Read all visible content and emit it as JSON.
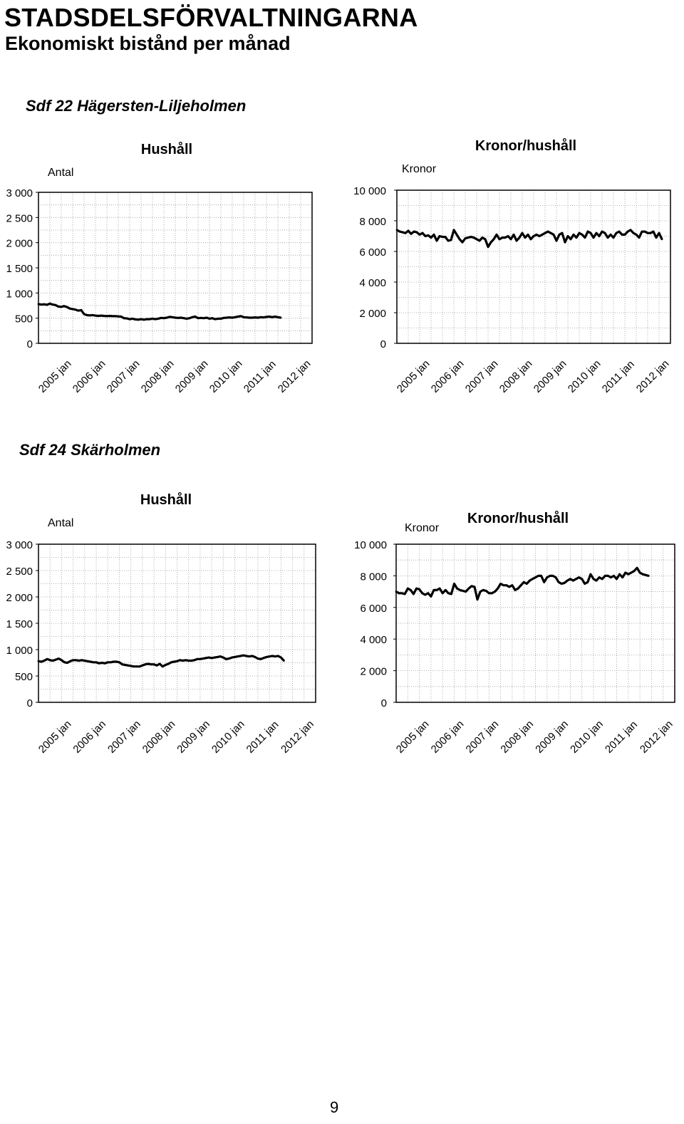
{
  "header": {
    "title": "STADSDELSFÖRVALTNINGARNA",
    "subtitle": "Ekonomiskt bistånd per månad"
  },
  "sections": [
    {
      "name": "Sdf 22 Hägersten-Liljeholmen"
    },
    {
      "name": "Sdf 24 Skärholmen"
    }
  ],
  "page_number": "9",
  "chart_data": [
    {
      "type": "line",
      "section": "Sdf 22 Hägersten-Liljeholmen",
      "title": "Hushåll",
      "ylabel": "Antal",
      "ylim": [
        0,
        3000
      ],
      "yticks": [
        0,
        500,
        1000,
        1500,
        2000,
        2500,
        3000
      ],
      "ytick_labels": [
        "0",
        "500",
        "1 000",
        "1 500",
        "2 000",
        "2 500",
        "3 000"
      ],
      "x_start": "2005-01",
      "xticks": [
        "2005 jan",
        "2006 jan",
        "2007 jan",
        "2008 jan",
        "2009 jan",
        "2010 jan",
        "2011 jan",
        "2012 jan"
      ],
      "grid": true,
      "values": [
        780,
        770,
        775,
        765,
        790,
        770,
        760,
        730,
        725,
        740,
        720,
        690,
        680,
        670,
        650,
        660,
        580,
        560,
        555,
        560,
        550,
        545,
        550,
        545,
        540,
        545,
        540,
        540,
        535,
        530,
        500,
        495,
        480,
        490,
        475,
        470,
        480,
        470,
        480,
        480,
        490,
        480,
        490,
        505,
        500,
        510,
        525,
        520,
        510,
        505,
        510,
        500,
        490,
        500,
        520,
        530,
        500,
        505,
        500,
        510,
        490,
        500,
        480,
        490,
        490,
        505,
        510,
        515,
        510,
        520,
        530,
        540,
        520,
        515,
        510,
        510,
        515,
        510,
        520,
        515,
        525,
        530,
        520,
        530,
        520,
        510
      ]
    },
    {
      "type": "line",
      "section": "Sdf 22 Hägersten-Liljeholmen",
      "title": "Kronor/hushåll",
      "ylabel": "Kronor",
      "ylim": [
        0,
        10000
      ],
      "yticks": [
        0,
        2000,
        4000,
        6000,
        8000,
        10000
      ],
      "ytick_labels": [
        "0",
        "2 000",
        "4 000",
        "6 000",
        "8 000",
        "10 000"
      ],
      "x_start": "2005-01",
      "xticks": [
        "2005 jan",
        "2006 jan",
        "2007 jan",
        "2008 jan",
        "2009 jan",
        "2010 jan",
        "2011 jan",
        "2012 jan"
      ],
      "grid": true,
      "values": [
        7400,
        7300,
        7250,
        7200,
        7350,
        7150,
        7300,
        7250,
        7100,
        7200,
        7000,
        7050,
        6900,
        7100,
        6700,
        7000,
        6950,
        6950,
        6700,
        6750,
        7400,
        7100,
        6800,
        6600,
        6850,
        6900,
        6950,
        6900,
        6800,
        6700,
        6900,
        6800,
        6300,
        6600,
        6800,
        7100,
        6800,
        6900,
        6900,
        7000,
        6800,
        7100,
        6700,
        6900,
        7200,
        6900,
        7100,
        6800,
        7000,
        7100,
        7000,
        7100,
        7200,
        7300,
        7200,
        7100,
        6700,
        7100,
        7200,
        6600,
        7000,
        6800,
        7100,
        6900,
        7200,
        7100,
        6900,
        7300,
        7200,
        6900,
        7200,
        7000,
        7300,
        7200,
        6900,
        7100,
        6900,
        7200,
        7300,
        7100,
        7100,
        7300,
        7400,
        7200,
        7100,
        6900,
        7300,
        7300,
        7200,
        7200,
        7300,
        6900,
        7200,
        6800
      ]
    },
    {
      "type": "line",
      "section": "Sdf 24 Skärholmen",
      "title": "Hushåll",
      "ylabel": "Antal",
      "ylim": [
        0,
        3000
      ],
      "yticks": [
        0,
        500,
        1000,
        1500,
        2000,
        2500,
        3000
      ],
      "ytick_labels": [
        "0",
        "500",
        "1 000",
        "1 500",
        "2 000",
        "2 500",
        "3 000"
      ],
      "x_start": "2005-01",
      "xticks": [
        "2005 jan",
        "2006 jan",
        "2007 jan",
        "2008 jan",
        "2009 jan",
        "2010 jan",
        "2011 jan",
        "2012 jan"
      ],
      "grid": true,
      "values": [
        780,
        770,
        790,
        820,
        800,
        790,
        810,
        830,
        800,
        760,
        750,
        780,
        800,
        800,
        790,
        800,
        790,
        780,
        770,
        760,
        760,
        740,
        750,
        740,
        760,
        760,
        770,
        770,
        760,
        720,
        710,
        700,
        690,
        680,
        680,
        680,
        700,
        720,
        730,
        720,
        720,
        700,
        730,
        680,
        710,
        730,
        760,
        770,
        780,
        800,
        790,
        800,
        790,
        790,
        800,
        820,
        820,
        830,
        840,
        850,
        840,
        850,
        860,
        870,
        850,
        820,
        830,
        850,
        860,
        870,
        880,
        890,
        880,
        870,
        880,
        860,
        830,
        820,
        840,
        860,
        870,
        880,
        870,
        880,
        850,
        790
      ]
    },
    {
      "type": "line",
      "section": "Sdf 24 Skärholmen",
      "title": "Kronor/hushåll",
      "ylabel": "Kronor",
      "ylim": [
        0,
        10000
      ],
      "yticks": [
        0,
        2000,
        4000,
        6000,
        8000,
        10000
      ],
      "ytick_labels": [
        "0",
        "2 000",
        "4 000",
        "6 000",
        "8 000",
        "10 000"
      ],
      "x_start": "2005-01",
      "xticks": [
        "2005 jan",
        "2006 jan",
        "2007 jan",
        "2008 jan",
        "2009 jan",
        "2010 jan",
        "2011 jan",
        "2012 jan"
      ],
      "grid": true,
      "values": [
        7000,
        6900,
        6900,
        6850,
        7200,
        7100,
        6850,
        7200,
        7150,
        6900,
        6800,
        6900,
        6700,
        7100,
        7100,
        7200,
        6900,
        7100,
        6900,
        6850,
        7500,
        7200,
        7100,
        7050,
        7000,
        7200,
        7350,
        7300,
        6500,
        7000,
        7100,
        7050,
        6900,
        6900,
        7000,
        7200,
        7500,
        7400,
        7400,
        7300,
        7400,
        7100,
        7200,
        7400,
        7600,
        7500,
        7700,
        7800,
        7900,
        8000,
        8000,
        7600,
        7900,
        8000,
        8000,
        7900,
        7600,
        7500,
        7550,
        7700,
        7800,
        7700,
        7800,
        7900,
        7800,
        7500,
        7600,
        8100,
        7800,
        7700,
        7900,
        7800,
        8000,
        8000,
        7900,
        8000,
        7800,
        8100,
        7900,
        8200,
        8100,
        8200,
        8300,
        8500,
        8200,
        8100,
        8050,
        8000
      ]
    }
  ]
}
